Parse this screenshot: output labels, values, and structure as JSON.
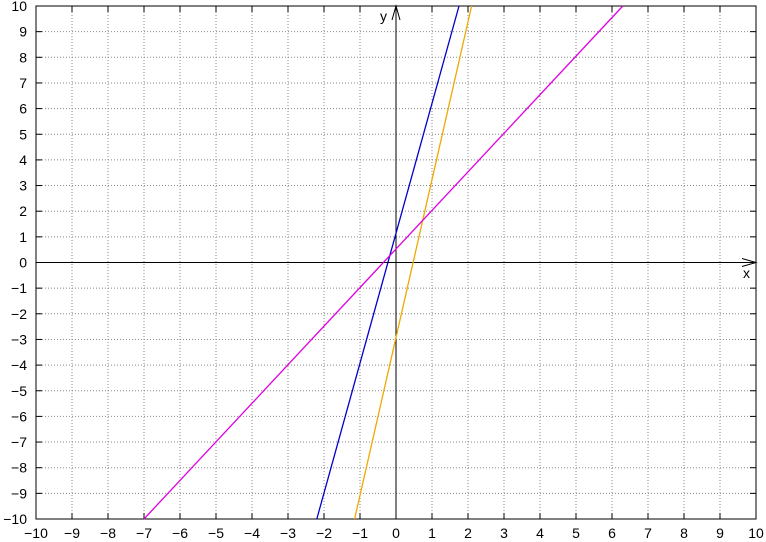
{
  "chart_data": {
    "type": "line",
    "xlabel": "x",
    "ylabel": "y",
    "xlim": [
      -10,
      10
    ],
    "ylim": [
      -10,
      10
    ],
    "grid": true,
    "grid_style": "dotted",
    "x_ticks": [
      "−10",
      "−9",
      "−8",
      "−7",
      "−6",
      "−5",
      "−4",
      "−3",
      "−2",
      "−1",
      "0",
      "1",
      "2",
      "3",
      "4",
      "5",
      "6",
      "7",
      "8",
      "9",
      "10"
    ],
    "y_ticks": [
      "−10",
      "−9",
      "−8",
      "−7",
      "−6",
      "−5",
      "−4",
      "−3",
      "−2",
      "−1",
      "0",
      "1",
      "2",
      "3",
      "4",
      "5",
      "6",
      "7",
      "8",
      "9",
      "10"
    ],
    "series": [
      {
        "color": "#0000cc",
        "x": [
          -2.2,
          1.75
        ],
        "y": [
          -10,
          10
        ]
      },
      {
        "color": "#f0a800",
        "x": [
          -1.15,
          2.1
        ],
        "y": [
          -10,
          10
        ]
      },
      {
        "color": "#e000e0",
        "x": [
          -7.0,
          6.3
        ],
        "y": [
          -10,
          10
        ]
      }
    ]
  }
}
